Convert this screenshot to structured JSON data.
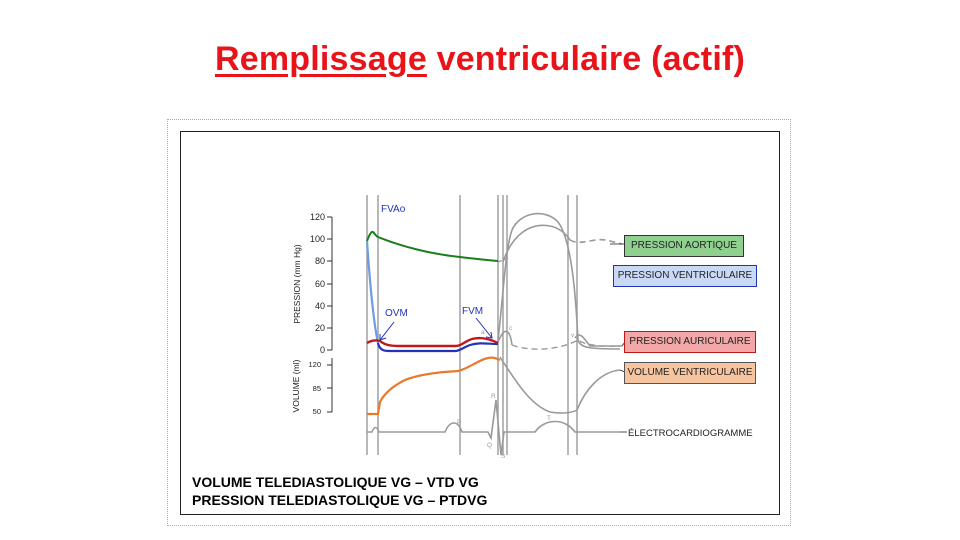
{
  "title": {
    "word1": "Remplissage",
    "word2": "ventriculaire",
    "word3": "(actif)"
  },
  "diagram": {
    "pressure_axis_label": "PRESSION (mm Hg)",
    "volume_axis_label": "VOLUME (ml)",
    "pressure_ticks": [
      "120",
      "100",
      "80",
      "60",
      "40",
      "20",
      "0"
    ],
    "volume_ticks": [
      "120",
      "85",
      "50"
    ],
    "annotations": {
      "fvao": "FVAo",
      "ovm": "OVM",
      "fvm": "FVM"
    },
    "legend": {
      "aortic": "PRESSION AORTIQUE",
      "ventricular": "PRESSION VENTRICULAIRE",
      "atrial": "PRESSION AURICULAIRE",
      "volume": "VOLUME VENTRICULAIRE",
      "ecg": "ÉLECTROCARDIOGRAMME"
    },
    "ecg_letters": {
      "p": "P",
      "q": "Q",
      "r": "R",
      "s": "S",
      "t": "T"
    },
    "wave_letters": {
      "a": "a",
      "c": "c",
      "v": "v"
    },
    "colors": {
      "title": "#e8141a",
      "aortic": "#1a7f1a",
      "ventricular": "#2233bb",
      "ventricular_light": "#6f9de0",
      "atrial": "#c01818",
      "volume": "#e87a2a",
      "gray": "#9a9a9a",
      "legend_aortic_bg": "#8fd08f",
      "legend_ventricular_bg": "#c9d9f5",
      "legend_atrial_bg": "#f2a8a8",
      "legend_volume_bg": "#f7c4a0"
    }
  },
  "captions": {
    "line1": "VOLUME TELEDIASTOLIQUE VG – VTD VG",
    "line2": "PRESSION TELEDIASTOLIQUE VG – PTDVG"
  }
}
